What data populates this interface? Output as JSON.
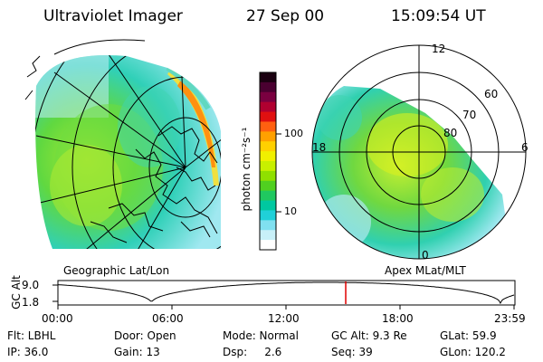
{
  "header": {
    "instrument": "Ultraviolet Imager",
    "date": "27 Sep 00",
    "time": "15:09:54 UT"
  },
  "colorbar": {
    "unit": "photon cm⁻²s⁻¹",
    "ticks": [
      "100",
      "10"
    ],
    "colors": [
      "#1a0010",
      "#4a0030",
      "#7a0040",
      "#b00030",
      "#e01010",
      "#ff6010",
      "#ffa000",
      "#ffd000",
      "#f0f000",
      "#c8f000",
      "#90e000",
      "#50d020",
      "#20c860",
      "#00c8a0",
      "#20d0d8",
      "#80e0f0",
      "#c8f0f8",
      "#ffffff"
    ]
  },
  "left_panel": {
    "label": "Geographic Lat/Lon"
  },
  "right_panel": {
    "label": "Apex MLat/MLT",
    "mlt_labels": {
      "top": "12",
      "left": "18",
      "right": "6",
      "bottom": "0"
    },
    "lat_labels": [
      "60",
      "70",
      "80"
    ]
  },
  "timeline": {
    "axis_label": "GC Alt",
    "y_ticks": [
      "9.0",
      "1.8"
    ],
    "x_ticks": [
      "00:00",
      "06:00",
      "12:00",
      "18:00",
      "23:59"
    ],
    "current_marker_fraction": 0.631
  },
  "info": {
    "row1": {
      "flt": "Flt: LBHL",
      "door": "Door: Open",
      "mode": "Mode: Normal",
      "gcalt": "GC Alt: 9.3 Re",
      "glat": "GLat:  59.9"
    },
    "row2": {
      "ip": "IP: 36.0",
      "gain": "Gain: 13",
      "dsp": "Dsp:     2.6",
      "seq": "Seq: 39",
      "glon": "GLon: 120.2"
    }
  }
}
